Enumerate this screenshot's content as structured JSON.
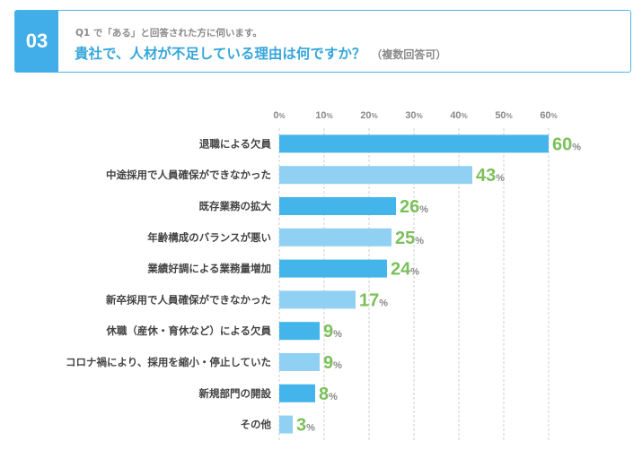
{
  "question": {
    "number": "03",
    "note": "Q1 で「ある」と回答された方に伺います。",
    "title": "貴社で、人材が不足している理由は何ですか？",
    "answer_type": "（複数回答可）"
  },
  "colors": {
    "accent": "#41ade9",
    "bar_dark": "#43b5ea",
    "bar_light": "#8fd0f3",
    "value": "#7bc05a",
    "grid": "#cfcfcf"
  },
  "chart_data": {
    "type": "bar",
    "orientation": "horizontal",
    "categories": [
      "退職による欠員",
      "中途採用で人員確保ができなかった",
      "既存業務の拡大",
      "年齢構成のバランスが悪い",
      "業績好調による業務量増加",
      "新卒採用で人員確保ができなかった",
      "休職（産休・育休など）による欠員",
      "コロナ禍により、採用を縮小・停止していた",
      "新規部門の開設",
      "その他"
    ],
    "values": [
      60,
      43,
      26,
      25,
      24,
      17,
      9,
      9,
      8,
      3
    ],
    "value_labels": [
      "60",
      "43",
      "26",
      "25",
      "24",
      "17",
      "9",
      "9",
      "8",
      "3"
    ],
    "value_unit": "%",
    "xticks": [
      "0",
      "10",
      "20",
      "30",
      "40",
      "50",
      "60"
    ],
    "tick_unit": "%",
    "xlim": [
      0,
      60
    ],
    "grid": true
  }
}
